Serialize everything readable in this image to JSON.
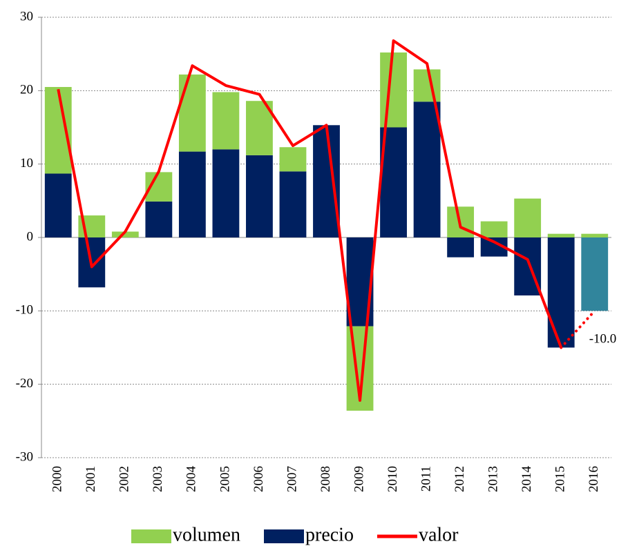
{
  "chart_data": {
    "type": "bar",
    "categories": [
      "2000",
      "2001",
      "2002",
      "2003",
      "2004",
      "2005",
      "2006",
      "2007",
      "2008",
      "2009",
      "2010",
      "2011",
      "2012",
      "2013",
      "2014",
      "2015",
      "2016"
    ],
    "series": [
      {
        "name": "volumen",
        "color": "#92d050",
        "values": [
          11.8,
          3.0,
          0.8,
          4.0,
          10.5,
          7.8,
          7.4,
          3.3,
          0,
          -11.5,
          10.2,
          4.4,
          4.2,
          2.2,
          5.3,
          0.5,
          0.5
        ]
      },
      {
        "name": "precio",
        "color": "#002060",
        "values": [
          8.7,
          -6.8,
          0,
          4.9,
          11.7,
          12.0,
          11.2,
          9.0,
          15.3,
          -12.1,
          15.0,
          18.5,
          -2.7,
          -2.6,
          -7.9,
          -15.0,
          -10.0
        ],
        "colors": [
          "#002060",
          "#002060",
          "#002060",
          "#002060",
          "#002060",
          "#002060",
          "#002060",
          "#002060",
          "#002060",
          "#002060",
          "#002060",
          "#002060",
          "#002060",
          "#002060",
          "#002060",
          "#002060",
          "#31859c"
        ]
      },
      {
        "name": "valor",
        "type": "line",
        "color": "#ff0000",
        "values": [
          20.2,
          -4.0,
          0.8,
          9.0,
          23.4,
          20.7,
          19.5,
          12.5,
          15.3,
          -22.2,
          26.8,
          23.7,
          1.4,
          -0.6,
          -3.0,
          -15.0,
          -10.0
        ],
        "value_labels": [
          null,
          null,
          null,
          null,
          null,
          null,
          null,
          null,
          null,
          null,
          null,
          null,
          null,
          null,
          null,
          null,
          "-10.0"
        ],
        "dotted_last": true
      }
    ],
    "ylim": [
      -30,
      30
    ],
    "yticks": [
      -30,
      -20,
      -10,
      0,
      10,
      20,
      30
    ],
    "grid": true,
    "legend": "bottom"
  }
}
